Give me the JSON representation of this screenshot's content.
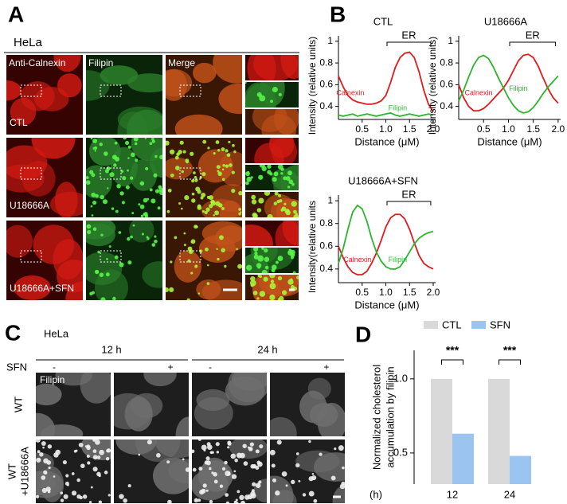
{
  "panel_labels": [
    "A",
    "B",
    "C",
    "D"
  ],
  "panel_a": {
    "cell_line": "HeLa",
    "columns": [
      "Anti-Calnexin",
      "Filipin",
      "Merge"
    ],
    "rows": [
      "CTL",
      "U18666A",
      "U18666A+SFN"
    ]
  },
  "panel_c": {
    "cell_line": "HeLa",
    "times": [
      "12 h",
      "24 h"
    ],
    "treatment_label": "SFN",
    "treatment_signs": [
      "-",
      "+",
      "-",
      "+"
    ],
    "stain": "Filipin",
    "rows": [
      [
        "WT"
      ],
      [
        "WT",
        "+U18666A"
      ]
    ]
  },
  "chart_data": [
    {
      "type": "line",
      "title": "CTL",
      "xlabel": "Distance (μM)",
      "ylabel": "Intensity  (relative units)",
      "annotation": "ER",
      "x": [
        0,
        0.1,
        0.2,
        0.3,
        0.4,
        0.5,
        0.6,
        0.7,
        0.8,
        0.9,
        1.0,
        1.1,
        1.2,
        1.3,
        1.4,
        1.5,
        1.6,
        1.7,
        1.8,
        1.9,
        2.0
      ],
      "series": [
        {
          "name": "Calnexin",
          "color": "#e3191c",
          "values": [
            0.68,
            0.58,
            0.5,
            0.46,
            0.44,
            0.43,
            0.42,
            0.42,
            0.43,
            0.45,
            0.5,
            0.62,
            0.76,
            0.85,
            0.89,
            0.9,
            0.85,
            0.72,
            0.55,
            0.42,
            0.35
          ]
        },
        {
          "name": "Filipin",
          "color": "#2cb52c",
          "values": [
            0.32,
            0.31,
            0.32,
            0.33,
            0.31,
            0.32,
            0.33,
            0.32,
            0.31,
            0.32,
            0.33,
            0.34,
            0.32,
            0.31,
            0.32,
            0.33,
            0.32,
            0.31,
            0.32,
            0.33,
            0.32
          ]
        }
      ],
      "xlim": [
        0,
        2.05
      ],
      "ylim": [
        0.28,
        1.05
      ],
      "xticks": [
        0.5,
        {
          "value": 1,
          "label": "1.0"
        },
        1.5,
        {
          "value": 2,
          "label": "2.0"
        }
      ],
      "yticks": [
        0.4,
        0.6,
        0.8,
        1
      ]
    },
    {
      "type": "line",
      "title": "U18666A",
      "xlabel": "Distance (μM)",
      "ylabel": "Intensity  (relative units)",
      "annotation": "ER",
      "x": [
        0,
        0.1,
        0.2,
        0.3,
        0.4,
        0.5,
        0.6,
        0.7,
        0.8,
        0.9,
        1.0,
        1.1,
        1.2,
        1.3,
        1.4,
        1.5,
        1.6,
        1.7,
        1.8,
        1.9,
        2.0
      ],
      "series": [
        {
          "name": "Calnexin",
          "color": "#e3191c",
          "values": [
            0.6,
            0.48,
            0.4,
            0.36,
            0.36,
            0.38,
            0.42,
            0.47,
            0.52,
            0.57,
            0.64,
            0.73,
            0.82,
            0.87,
            0.88,
            0.85,
            0.77,
            0.66,
            0.56,
            0.48,
            0.43
          ]
        },
        {
          "name": "Filipin",
          "color": "#2cb52c",
          "values": [
            0.45,
            0.55,
            0.67,
            0.78,
            0.85,
            0.87,
            0.84,
            0.76,
            0.66,
            0.57,
            0.48,
            0.41,
            0.36,
            0.34,
            0.35,
            0.39,
            0.45,
            0.52,
            0.58,
            0.63,
            0.68
          ]
        }
      ],
      "xlim": [
        0,
        2.05
      ],
      "ylim": [
        0.28,
        1.05
      ],
      "xticks": [
        0.5,
        {
          "value": 1,
          "label": "1.0"
        },
        1.5,
        {
          "value": 2,
          "label": "2.0"
        }
      ],
      "yticks": [
        0.4,
        0.6,
        0.8,
        1
      ]
    },
    {
      "type": "line",
      "title": "U18666A+SFN",
      "xlabel": "Distance (μM)",
      "ylabel": "Intensity(relative units",
      "annotation": "ER",
      "x": [
        0,
        0.1,
        0.2,
        0.3,
        0.4,
        0.5,
        0.6,
        0.7,
        0.8,
        0.9,
        1.0,
        1.1,
        1.2,
        1.3,
        1.4,
        1.5,
        1.6,
        1.7,
        1.8,
        1.9,
        2.0
      ],
      "series": [
        {
          "name": "Calnexin",
          "color": "#e3191c",
          "values": [
            0.6,
            0.5,
            0.42,
            0.37,
            0.35,
            0.35,
            0.38,
            0.45,
            0.54,
            0.65,
            0.77,
            0.85,
            0.88,
            0.88,
            0.84,
            0.75,
            0.63,
            0.52,
            0.45,
            0.42,
            0.4
          ]
        },
        {
          "name": "Filipin",
          "color": "#2cb52c",
          "values": [
            0.45,
            0.58,
            0.75,
            0.9,
            0.96,
            0.93,
            0.82,
            0.67,
            0.55,
            0.47,
            0.42,
            0.4,
            0.4,
            0.42,
            0.48,
            0.55,
            0.62,
            0.67,
            0.7,
            0.72,
            0.73
          ]
        }
      ],
      "xlim": [
        0,
        2.05
      ],
      "ylim": [
        0.28,
        1.05
      ],
      "xticks": [
        0.5,
        {
          "value": 1,
          "label": "1.0"
        },
        1.5,
        {
          "value": 2,
          "label": "2.0"
        }
      ],
      "yticks": [
        0.4,
        0.6,
        0.8,
        1
      ]
    },
    {
      "type": "bar",
      "xlabel": "(h)",
      "ylabel": [
        "Normalized cholesterol",
        "accumulation by filipin"
      ],
      "categories": [
        "12",
        "24"
      ],
      "series": [
        {
          "name": "CTL",
          "color": "#d9d9d9",
          "values": [
            1.0,
            1.0
          ]
        },
        {
          "name": "SFN",
          "color": "#9cc4f0",
          "values": [
            0.63,
            0.48
          ]
        }
      ],
      "significance": [
        "***",
        "***"
      ],
      "ylim": [
        0.29,
        1.3
      ],
      "yticks": [
        0.5,
        {
          "value": 1,
          "label": "1.0"
        }
      ],
      "legend": "top"
    }
  ]
}
